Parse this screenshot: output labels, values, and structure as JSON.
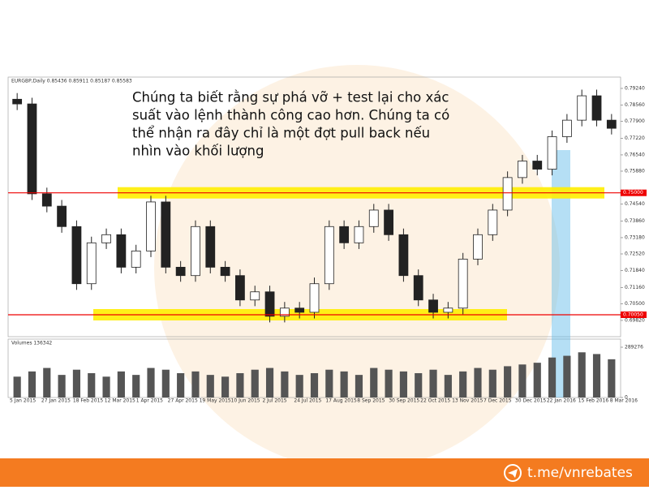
{
  "chart_data": {
    "type": "candlestick",
    "header": "EURGBP,Daily 0.85436 0.85911 0.85187 0.85583",
    "annotation": [
      "Chúng ta biết rằng sự phá vỡ + test lại cho xác",
      "suất vào lệnh thành công cao hơn. Chúng ta có",
      "thể nhận ra đây chỉ là một đợt pull back nếu",
      "nhìn vào khối lượng"
    ],
    "x_tick_labels": [
      "5 Jan 2015",
      "27 Jan 2015",
      "18 Feb 2015",
      "12 Mar 2015",
      "1 Apr 2015",
      "27 Apr 2015",
      "19 May 2015",
      "10 Jun 2015",
      "2 Jul 2015",
      "24 Jul 2015",
      "17 Aug 2015",
      "8 Sep 2015",
      "30 Sep 2015",
      "22 Oct 2015",
      "13 Nov 2015",
      "7 Dec 2015",
      "30 Dec 2015",
      "22 Jan 2016",
      "15 Feb 2016",
      "8 Mar 2016"
    ],
    "open": [
      0.788,
      0.7861,
      0.7496,
      0.7446,
      0.7363,
      0.7131,
      0.7297,
      0.733,
      0.7198,
      0.7264,
      0.7463,
      0.7198,
      0.7164,
      0.7363,
      0.7198,
      0.7164,
      0.7065,
      0.7098,
      0.6999,
      0.7032,
      0.7015,
      0.7131,
      0.7363,
      0.7297,
      0.7363,
      0.743,
      0.733,
      0.7164,
      0.7065,
      0.7015,
      0.7032,
      0.7231,
      0.733,
      0.743,
      0.7562,
      0.7629,
      0.7596,
      0.7728,
      0.7795,
      0.7894,
      0.7795
    ],
    "high": [
      0.7905,
      0.7886,
      0.7521,
      0.7471,
      0.7388,
      0.7322,
      0.7355,
      0.7355,
      0.7289,
      0.7488,
      0.7488,
      0.7223,
      0.7388,
      0.7388,
      0.7223,
      0.7189,
      0.7123,
      0.7123,
      0.7057,
      0.7057,
      0.7156,
      0.7388,
      0.7388,
      0.7388,
      0.7455,
      0.7455,
      0.7355,
      0.7189,
      0.709,
      0.7057,
      0.7256,
      0.7355,
      0.7455,
      0.7587,
      0.7654,
      0.7654,
      0.7753,
      0.782,
      0.7919,
      0.7919,
      0.782
    ],
    "low": [
      0.7836,
      0.7471,
      0.7421,
      0.7338,
      0.7106,
      0.7106,
      0.7272,
      0.7173,
      0.7173,
      0.7239,
      0.7173,
      0.7139,
      0.7139,
      0.7173,
      0.7139,
      0.704,
      0.704,
      0.6974,
      0.6974,
      0.699,
      0.699,
      0.7106,
      0.7272,
      0.7272,
      0.7338,
      0.7305,
      0.7139,
      0.704,
      0.699,
      0.699,
      0.7007,
      0.7206,
      0.7305,
      0.7405,
      0.7537,
      0.7571,
      0.7571,
      0.7703,
      0.777,
      0.777,
      0.7737
    ],
    "close": [
      0.7861,
      0.7496,
      0.7446,
      0.7363,
      0.7131,
      0.7297,
      0.733,
      0.7198,
      0.7264,
      0.7463,
      0.7198,
      0.7164,
      0.7363,
      0.7198,
      0.7164,
      0.7065,
      0.7098,
      0.6999,
      0.7032,
      0.7015,
      0.7131,
      0.7363,
      0.7297,
      0.7363,
      0.743,
      0.733,
      0.7164,
      0.7065,
      0.7015,
      0.7032,
      0.7231,
      0.733,
      0.743,
      0.7562,
      0.7629,
      0.7596,
      0.7728,
      0.7795,
      0.7894,
      0.7795,
      0.7762
    ],
    "ylim": [
      0.6916,
      0.797
    ],
    "yticks": [
      {
        "value": 0.7924,
        "label": "0.79240"
      },
      {
        "value": 0.7856,
        "label": "0.78560"
      },
      {
        "value": 0.779,
        "label": "0.77900"
      },
      {
        "value": 0.7722,
        "label": "0.77220"
      },
      {
        "value": 0.7654,
        "label": "0.76540"
      },
      {
        "value": 0.7588,
        "label": "0.75880"
      },
      {
        "value": 0.7454,
        "label": "0.74540"
      },
      {
        "value": 0.7386,
        "label": "0.73860"
      },
      {
        "value": 0.7318,
        "label": "0.73180"
      },
      {
        "value": 0.7252,
        "label": "0.72520"
      },
      {
        "value": 0.7184,
        "label": "0.71840"
      },
      {
        "value": 0.7116,
        "label": "0.71160"
      },
      {
        "value": 0.705,
        "label": "0.70500"
      },
      {
        "value": 0.6982,
        "label": "0.69820"
      }
    ],
    "levels": [
      {
        "value": 0.75,
        "label": "0.75000"
      },
      {
        "value": 0.7005,
        "label": "0.70050"
      }
    ],
    "volume_header": "Volumes 136342",
    "volumes": [
      120000,
      150000,
      170000,
      130000,
      160000,
      140000,
      120000,
      150000,
      130000,
      170000,
      160000,
      140000,
      150000,
      130000,
      120000,
      140000,
      160000,
      170000,
      150000,
      130000,
      140000,
      160000,
      150000,
      130000,
      170000,
      160000,
      150000,
      140000,
      160000,
      130000,
      150000,
      170000,
      160000,
      180000,
      190000,
      200000,
      230000,
      240000,
      260000,
      250000,
      220000
    ],
    "vlim": [
      0,
      289276
    ],
    "vticks": [
      0,
      289276
    ],
    "footer": "t.me/vnrebates"
  }
}
